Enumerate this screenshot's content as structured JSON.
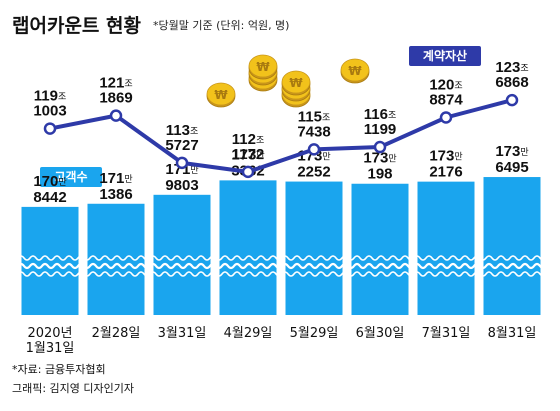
{
  "header": {
    "title": "랩어카운트 현황",
    "subtitle": "*당월말 기준 (단위: 억원, 명)"
  },
  "series_tags": {
    "line": "계약자산",
    "bar": "고객수"
  },
  "footer": {
    "source": "*자료: 금융투자협회",
    "credit": "그래픽: 김지영 디자인기자"
  },
  "colors": {
    "line": "#2e3aa8",
    "bar": "#1aa5ee",
    "bar_tag": "#1aa5ee",
    "line_tag": "#2e3aa8",
    "coin": "#f2c21b"
  },
  "chart_data": {
    "type": "bar",
    "categories": [
      "2020년 1월31일",
      "2월28일",
      "3월31일",
      "4월29일",
      "5월29일",
      "6월30일",
      "7월31일",
      "8월31일"
    ],
    "category_lines": [
      [
        "2020년",
        "1월31일"
      ],
      [
        "2월28일"
      ],
      [
        "3월31일"
      ],
      [
        "4월29일"
      ],
      [
        "5월29일"
      ],
      [
        "6월30일"
      ],
      [
        "7월31일"
      ],
      [
        "8월31일"
      ]
    ],
    "series": [
      {
        "name": "고객수",
        "type": "bar",
        "unit": "명",
        "values": [
          1708442,
          1711386,
          1719803,
          1733362,
          1732252,
          1730198,
          1732176,
          1736495
        ],
        "labels": [
          {
            "top": "170",
            "unit": "만",
            "bottom": "8442"
          },
          {
            "top": "171",
            "unit": "만",
            "bottom": "1386"
          },
          {
            "top": "171",
            "unit": "만",
            "bottom": "9803"
          },
          {
            "top": "173",
            "unit": "만",
            "bottom": "3362"
          },
          {
            "top": "173",
            "unit": "만",
            "bottom": "2252"
          },
          {
            "top": "173",
            "unit": "만",
            "bottom": "198"
          },
          {
            "top": "173",
            "unit": "만",
            "bottom": "2176"
          },
          {
            "top": "173",
            "unit": "만",
            "bottom": "6495"
          }
        ]
      },
      {
        "name": "계약자산",
        "type": "line",
        "unit": "억원",
        "values": [
          1191003,
          1211869,
          1135727,
          1121172,
          1157438,
          1161199,
          1208874,
          1236868
        ],
        "labels": [
          {
            "top": "119",
            "unit": "조",
            "bottom": "1003"
          },
          {
            "top": "121",
            "unit": "조",
            "bottom": "1869"
          },
          {
            "top": "113",
            "unit": "조",
            "bottom": "5727"
          },
          {
            "top": "112",
            "unit": "조",
            "bottom": "1172"
          },
          {
            "top": "115",
            "unit": "조",
            "bottom": "7438"
          },
          {
            "top": "116",
            "unit": "조",
            "bottom": "1199"
          },
          {
            "top": "120",
            "unit": "조",
            "bottom": "8874"
          },
          {
            "top": "123",
            "unit": "조",
            "bottom": "6868"
          }
        ]
      }
    ]
  }
}
